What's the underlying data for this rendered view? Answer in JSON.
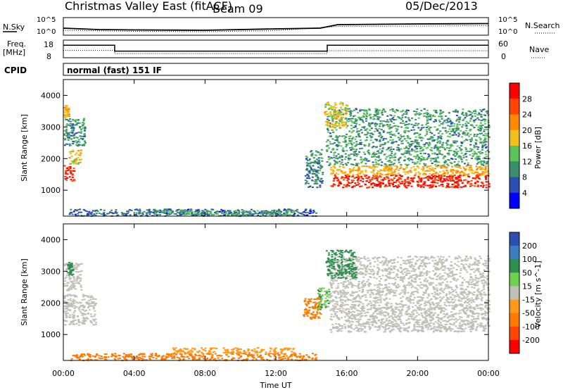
{
  "header": {
    "title": "Christmas Valley East (fitACF)",
    "beam": "Beam 09",
    "date": "05/Dec/2013"
  },
  "left_labels": {
    "nsky": "N.Sky",
    "freq": "Freq.",
    "freq_unit": "[MHz]",
    "cpid": "CPID",
    "nsky_ticks": [
      "10^5",
      "10^0"
    ],
    "freq_ticks": [
      "18",
      "8"
    ]
  },
  "right_labels": {
    "nsearch": "N.Search",
    "nave": "Nave",
    "nsearch_ticks": [
      "10^5",
      "10^0"
    ],
    "nave_ticks": [
      "60",
      "0"
    ]
  },
  "cpid_text": "normal (fast) 151 IF",
  "x_axis": {
    "label": "Time UT",
    "ticks": [
      "00:00",
      "04:00",
      "08:00",
      "12:00",
      "16:00",
      "20:00",
      "00:00"
    ]
  },
  "chart_data": [
    {
      "type": "line",
      "series": [
        {
          "name": "N.Sky",
          "x": [
            0,
            2,
            4,
            8,
            12,
            14.5,
            15.5,
            20,
            24
          ],
          "y": [
            2.0,
            1.6,
            1.5,
            1.4,
            1.8,
            2.0,
            3.0,
            3.2,
            3.3
          ]
        },
        {
          "name": "N.Search",
          "x": [
            0,
            4,
            8,
            12,
            15.5,
            20,
            24
          ],
          "y": [
            1.4,
            1.1,
            1.0,
            1.3,
            2.5,
            2.6,
            2.7
          ]
        }
      ],
      "ylim": [
        0,
        5
      ],
      "xlim": [
        0,
        24
      ]
    },
    {
      "type": "line",
      "series": [
        {
          "name": "Freq.",
          "x": [
            0,
            2.9,
            2.9,
            14.9,
            14.9,
            24
          ],
          "y": [
            14.5,
            14.5,
            10.5,
            10.5,
            14.5,
            14.5
          ]
        },
        {
          "name": "Nave",
          "x": [
            0,
            2.9,
            2.9,
            14.9,
            14.9,
            24
          ],
          "y": [
            25,
            25,
            14,
            14,
            24,
            24
          ]
        }
      ],
      "xlim": [
        0,
        24
      ]
    },
    {
      "type": "heatmap",
      "title": "Power [dB]",
      "ylabel": "Slant Range [km]",
      "xlabel": "Time UT",
      "xlim": [
        0,
        24
      ],
      "ylim": [
        180,
        4500
      ],
      "yticks": [
        "1000",
        "2000",
        "3000",
        "4000"
      ],
      "colorbar_ticks": [
        "4",
        "8",
        "12",
        "16",
        "20",
        "24",
        "28"
      ],
      "colorbar_colors": [
        "#0000ff",
        "#2b4fb3",
        "#3a8f6a",
        "#5cc35c",
        "#f0c020",
        "#ff8c00",
        "#ff4500",
        "#ff0000"
      ],
      "regions": [
        {
          "t0": 0.0,
          "t1": 0.6,
          "r0": 1300,
          "r1": 1800,
          "value": 28
        },
        {
          "t0": 0.3,
          "t1": 1.0,
          "r0": 1800,
          "r1": 2300,
          "value": 18
        },
        {
          "t0": 0.0,
          "t1": 1.2,
          "r0": 2400,
          "r1": 3300,
          "value": 10
        },
        {
          "t0": 0.0,
          "t1": 0.3,
          "r0": 3300,
          "r1": 3700,
          "value": 20
        },
        {
          "t0": 0.3,
          "t1": 14.3,
          "r0": 200,
          "r1": 420,
          "value": 7
        },
        {
          "t0": 5.0,
          "t1": 13.0,
          "r0": 230,
          "r1": 380,
          "value": 12
        },
        {
          "t0": 13.6,
          "t1": 14.6,
          "r0": 1100,
          "r1": 2300,
          "value": 9
        },
        {
          "t0": 15.0,
          "t1": 24.0,
          "r0": 1100,
          "r1": 1500,
          "value": 28
        },
        {
          "t0": 15.0,
          "t1": 24.0,
          "r0": 1500,
          "r1": 1800,
          "value": 20
        },
        {
          "t0": 14.8,
          "t1": 24.0,
          "r0": 1800,
          "r1": 3600,
          "value": 11
        },
        {
          "t0": 14.7,
          "t1": 16.0,
          "r0": 3000,
          "r1": 3800,
          "value": 18
        }
      ]
    },
    {
      "type": "heatmap",
      "title": "Velocity [m s^-1]",
      "ylabel": "Slant Range [km]",
      "xlabel": "Time UT",
      "xlim": [
        0,
        24
      ],
      "ylim": [
        180,
        4500
      ],
      "yticks": [
        "1000",
        "2000",
        "3000",
        "4000"
      ],
      "colorbar_ticks": [
        "200",
        "100",
        "50",
        "15",
        "-15",
        "-50",
        "-100",
        "-200"
      ],
      "colorbar_colors": [
        "#2b4fb3",
        "#3a7fbf",
        "#2f8f4f",
        "#6fd34f",
        "#c0c0b8",
        "#ff9a1a",
        "#ff7a00",
        "#ff4500",
        "#ff0000"
      ],
      "regions": [
        {
          "t0": 0.0,
          "t1": 1.8,
          "r0": 1300,
          "r1": 2300,
          "value": 0
        },
        {
          "t0": 0.0,
          "t1": 1.0,
          "r0": 2400,
          "r1": 3300,
          "value": 0
        },
        {
          "t0": 0.2,
          "t1": 0.5,
          "r0": 2900,
          "r1": 3300,
          "value": 60
        },
        {
          "t0": 0.3,
          "t1": 14.3,
          "r0": 200,
          "r1": 420,
          "value": -60
        },
        {
          "t0": 6.0,
          "t1": 13.0,
          "r0": 420,
          "r1": 600,
          "value": -40
        },
        {
          "t0": 13.5,
          "t1": 14.5,
          "r0": 1500,
          "r1": 2200,
          "value": -70
        },
        {
          "t0": 14.3,
          "t1": 15.0,
          "r0": 1800,
          "r1": 2500,
          "value": 30
        },
        {
          "t0": 15.0,
          "t1": 24.0,
          "r0": 1100,
          "r1": 1900,
          "value": 0
        },
        {
          "t0": 15.0,
          "t1": 24.0,
          "r0": 1900,
          "r1": 3500,
          "value": 0
        },
        {
          "t0": 14.8,
          "t1": 16.5,
          "r0": 2800,
          "r1": 3700,
          "value": 40
        }
      ]
    }
  ]
}
